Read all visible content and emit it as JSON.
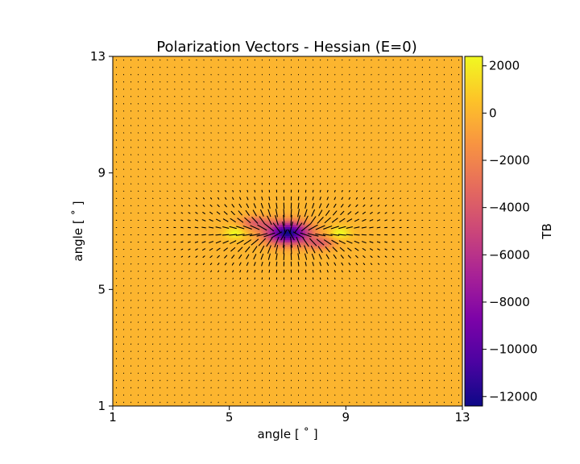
{
  "chart_data": {
    "type": "heatmap",
    "title": "Polarization Vectors - Hessian (E=0)",
    "xlabel": "angle [$^\\circ$]",
    "ylabel": "angle [$^\\circ$]",
    "xlabel_display": "angle [ ˚ ]",
    "ylabel_display": "angle [ ˚ ]",
    "xlim": [
      1,
      13
    ],
    "ylim": [
      1,
      13
    ],
    "xticks": [
      1,
      5,
      9,
      13
    ],
    "yticks": [
      1,
      5,
      9,
      13
    ],
    "grid": false,
    "overlay": "quiver",
    "background_value": 0,
    "features": [
      {
        "x": 7.0,
        "y": 6.95,
        "amplitude": -12400,
        "sx": 0.5,
        "sy": 0.25
      },
      {
        "x": 5.2,
        "y": 6.95,
        "amplitude": 2400,
        "sx": 0.25,
        "sy": 0.15
      },
      {
        "x": 8.8,
        "y": 6.95,
        "amplitude": 2400,
        "sx": 0.25,
        "sy": 0.15
      },
      {
        "x": 5.9,
        "y": 7.3,
        "amplitude": -3500,
        "sx": 0.35,
        "sy": 0.15
      },
      {
        "x": 8.1,
        "y": 6.6,
        "amplitude": -3500,
        "sx": 0.35,
        "sy": 0.15
      }
    ],
    "colorbar": {
      "label": "TB",
      "colormap": "plasma",
      "vmin": -12400,
      "vmax": 2400,
      "ticks": [
        2000,
        0,
        -2000,
        -4000,
        -6000,
        -8000,
        -10000,
        -12000
      ],
      "tick_labels": [
        "2000",
        "0",
        "−2000",
        "−4000",
        "−6000",
        "−8000",
        "−10000",
        "−12000"
      ]
    }
  }
}
